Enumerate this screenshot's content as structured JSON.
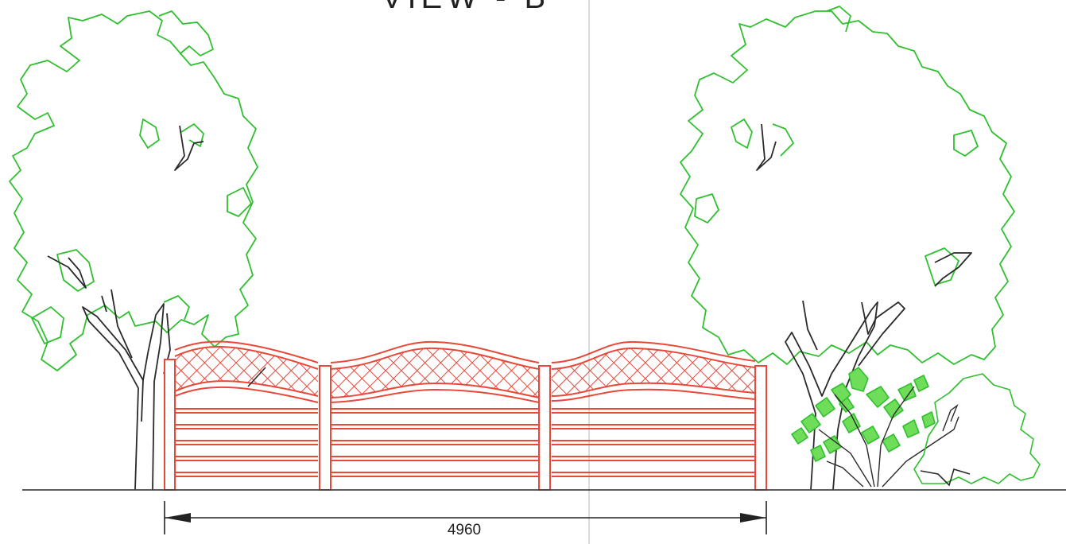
{
  "drawing": {
    "title": "VIEW - B",
    "dimension": "4960"
  },
  "colors": {
    "fence": "#e8483a",
    "foliage": "#2fbf2f",
    "shrub_fill": "#6fdc5a",
    "trunk": "#2a2a2a",
    "ground": "#444444",
    "fold_line": "#c8c8c8"
  },
  "icons": [
    "tree",
    "fence-panel",
    "lattice",
    "fern",
    "shrub",
    "dimension-arrow"
  ]
}
